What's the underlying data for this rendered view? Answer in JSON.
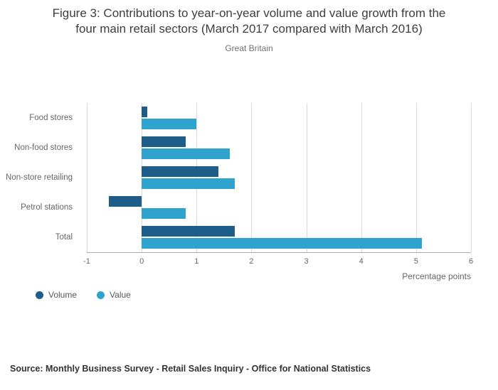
{
  "title": {
    "line1": "Figure 3: Contributions to year-on-year volume and value growth from the",
    "line2": "four main retail sectors (March 2017 compared with March 2016)"
  },
  "subtitle": "Great Britain",
  "source": "Source: Monthly Business Survey - Retail Sales Inquiry - Office for National Statistics",
  "chart_data": {
    "type": "bar",
    "orientation": "horizontal",
    "title": "Figure 3: Contributions to year-on-year volume and value growth from the four main retail sectors (March 2017 compared with March 2016)",
    "subtitle": "Great Britain",
    "categories": [
      "Food stores",
      "Non-food stores",
      "Non-store retailing",
      "Petrol stations",
      "Total"
    ],
    "series": [
      {
        "name": "Volume",
        "color": "#1e5c8a",
        "values": [
          0.1,
          0.8,
          1.4,
          -0.6,
          1.7
        ]
      },
      {
        "name": "Value",
        "color": "#2fa3ce",
        "values": [
          1.0,
          1.6,
          1.7,
          0.8,
          5.1
        ]
      }
    ],
    "xlabel": "Percentage points",
    "ylabel": "",
    "xlim": [
      -1,
      6
    ],
    "xticks": [
      -1,
      0,
      1,
      2,
      3,
      4,
      5,
      6
    ],
    "grid": true,
    "legend_position": "bottom-left"
  }
}
